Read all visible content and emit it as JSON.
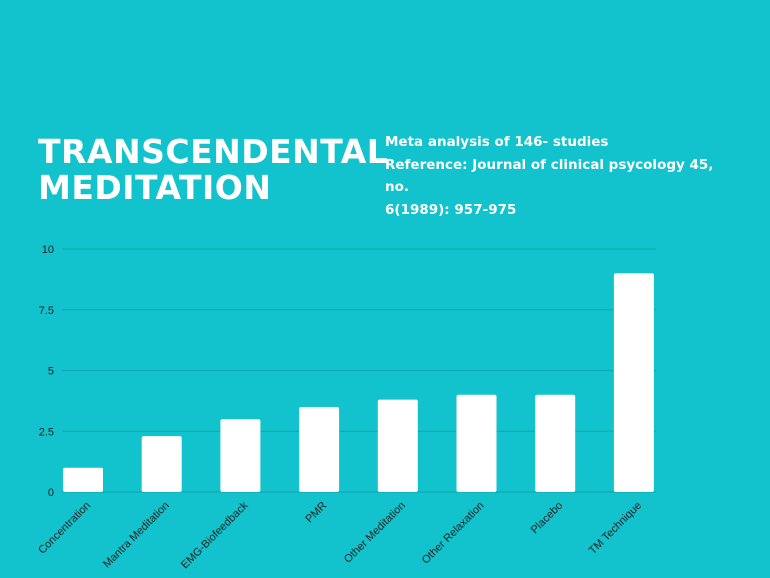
{
  "colors": {
    "background": "#12C2CC",
    "bar": "#FFFFFF",
    "gridline": "#0FA6AE",
    "text": "#FFFFFF",
    "axis_text": "#222222"
  },
  "heading": {
    "line1": "TRANSCENDENTAL",
    "line2": "MEDITATION"
  },
  "notes": {
    "line1": "Meta analysis of 146- studies",
    "line2": "Reference: Journal of clinical psycology 45, no.",
    "line3": "6(1989): 957-975"
  },
  "chart_data": {
    "type": "bar",
    "categories": [
      "Concentration",
      "Mantra Meditation",
      "EMG-Biofeedback",
      "PMR",
      "Other Meditation",
      "Other Relaxation",
      "Placebo",
      "TM Technique"
    ],
    "values": [
      1,
      2.3,
      3,
      3.5,
      3.8,
      4,
      4,
      9
    ],
    "ylim": [
      0,
      10
    ],
    "yticks": [
      "0",
      "2.5",
      "5",
      "7.5",
      "10"
    ],
    "ytick_values": [
      0,
      2.5,
      5,
      7.5,
      10
    ],
    "grid": true,
    "legend": "none"
  }
}
